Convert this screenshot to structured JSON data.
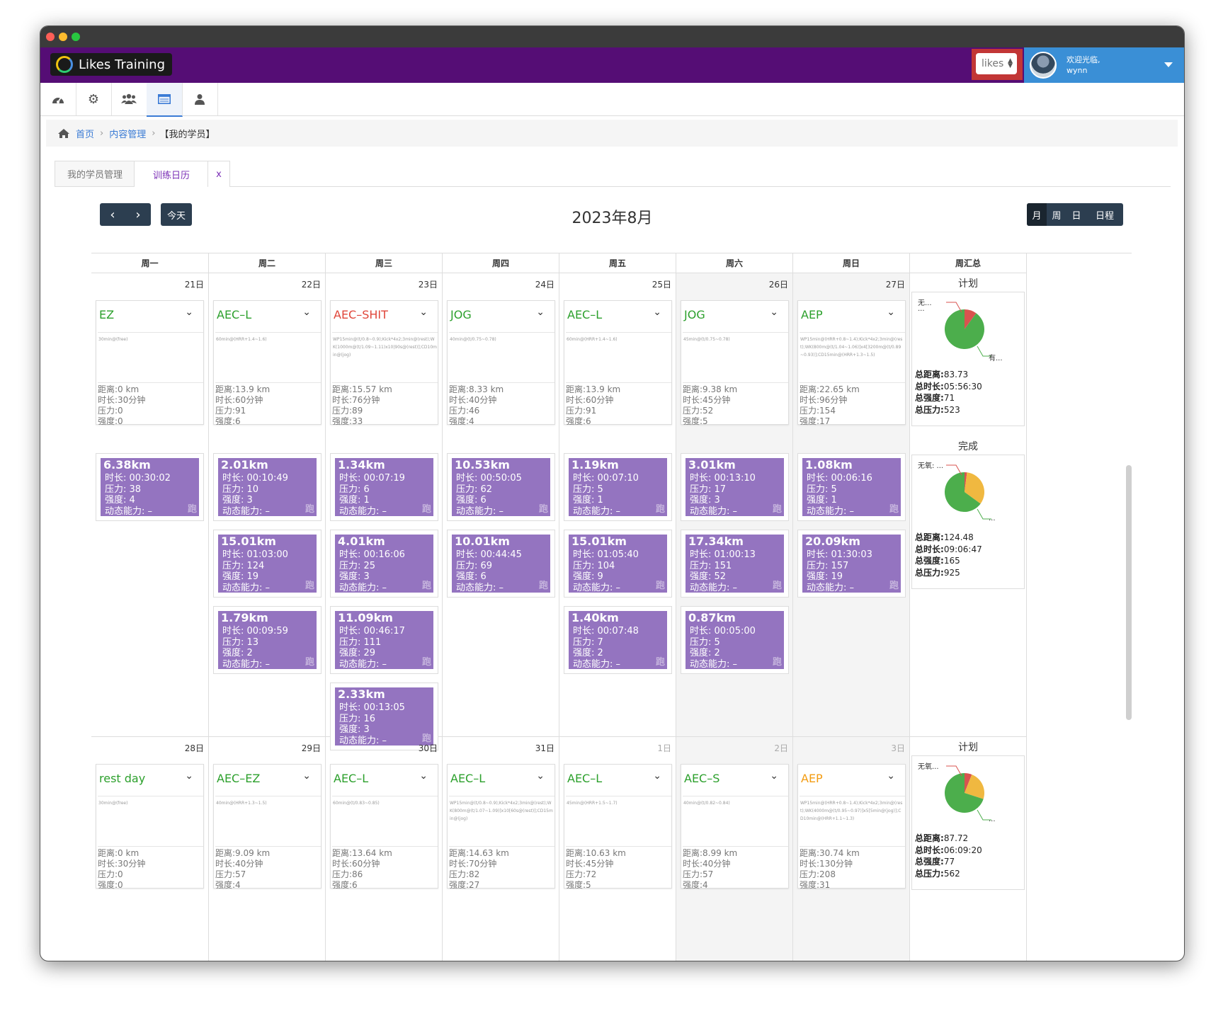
{
  "app": {
    "brand": "Likes Training",
    "org": "likes",
    "welcome": "欢迎光临,",
    "user": "wynn"
  },
  "iconbar": [
    "dashboard-icon",
    "gear-icon",
    "group-icon",
    "calendar-list-icon",
    "user-icon"
  ],
  "breadcrumb": {
    "home": "首页",
    "section": "内容管理",
    "current": "【我的学员】"
  },
  "tabs": {
    "tab1": "我的学员管理",
    "tab2": "训练日历",
    "close": "x"
  },
  "calendar": {
    "title": "2023年8月",
    "today": "今天",
    "views": [
      "月",
      "周",
      "日",
      "日程"
    ],
    "headers": [
      "周一",
      "周二",
      "周三",
      "周四",
      "周五",
      "周六",
      "周日",
      "周汇总"
    ],
    "weeks": [
      {
        "days": [
          {
            "date": "21日",
            "weekend": false,
            "dim": false,
            "plan": {
              "title": "EZ",
              "color": "#2ca02c",
              "desc": "30min@(free)",
              "stats": [
                "距离:0 km",
                "时长:30分钟",
                "压力:0",
                "强度:0"
              ]
            },
            "acts": [
              {
                "dist": "6.38km",
                "lines": [
                  "时长:  00:30:02",
                  "压力:  38",
                  "强度:  4",
                  "动态能力:  –"
                ],
                "tag": "跑"
              }
            ]
          },
          {
            "date": "22日",
            "weekend": false,
            "dim": false,
            "plan": {
              "title": "AEC–L",
              "color": "#2ca02c",
              "desc": "60min@(HRR+1.4~1.6)",
              "stats": [
                "距离:13.9 km",
                "时长:60分钟",
                "压力:91",
                "强度:6"
              ]
            },
            "acts": [
              {
                "dist": "2.01km",
                "lines": [
                  "时长:  00:10:49",
                  "压力:  10",
                  "强度:  3",
                  "动态能力:  –"
                ],
                "tag": "跑"
              },
              {
                "dist": "15.01km",
                "lines": [
                  "时长:  01:03:00",
                  "压力:  124",
                  "强度:  19",
                  "动态能力:  –"
                ],
                "tag": "跑"
              },
              {
                "dist": "1.79km",
                "lines": [
                  "时长:  00:09:59",
                  "压力:  13",
                  "强度:  2",
                  "动态能力:  –"
                ],
                "tag": "跑"
              }
            ]
          },
          {
            "date": "23日",
            "weekend": false,
            "dim": false,
            "plan": {
              "title": "AEC–SHIT",
              "color": "#e0463a",
              "desc": "WP15min@(t/0.8~0.9);Kick*4x2;3min@(rest);WK(1000m@(t/1.09~1.11)x10|90s@(rest)];CD10min@(jog)",
              "stats": [
                "距离:15.57 km",
                "时长:76分钟",
                "压力:89",
                "强度:33"
              ]
            },
            "acts": [
              {
                "dist": "1.34km",
                "lines": [
                  "时长:  00:07:19",
                  "压力:  6",
                  "强度:  1",
                  "动态能力:  –"
                ],
                "tag": "跑"
              },
              {
                "dist": "4.01km",
                "lines": [
                  "时长:  00:16:06",
                  "压力:  25",
                  "强度:  3",
                  "动态能力:  –"
                ],
                "tag": "跑"
              },
              {
                "dist": "11.09km",
                "lines": [
                  "时长:  00:46:17",
                  "压力:  111",
                  "强度:  29",
                  "动态能力:  –"
                ],
                "tag": "跑"
              },
              {
                "dist": "2.33km",
                "lines": [
                  "时长:  00:13:05",
                  "压力:  16",
                  "强度:  3",
                  "动态能力:  –"
                ],
                "tag": "跑"
              }
            ]
          },
          {
            "date": "24日",
            "weekend": false,
            "dim": false,
            "plan": {
              "title": "JOG",
              "color": "#2ca02c",
              "desc": "40min@(t/0.75~0.78)",
              "stats": [
                "距离:8.33 km",
                "时长:40分钟",
                "压力:46",
                "强度:4"
              ]
            },
            "acts": [
              {
                "dist": "10.53km",
                "lines": [
                  "时长:  00:50:05",
                  "压力:  62",
                  "强度:  6",
                  "动态能力:  –"
                ],
                "tag": "跑"
              },
              {
                "dist": "10.01km",
                "lines": [
                  "时长:  00:44:45",
                  "压力:  69",
                  "强度:  6",
                  "动态能力:  –"
                ],
                "tag": "跑"
              }
            ]
          },
          {
            "date": "25日",
            "weekend": false,
            "dim": false,
            "plan": {
              "title": "AEC–L",
              "color": "#2ca02c",
              "desc": "60min@(HRR+1.4~1.6)",
              "stats": [
                "距离:13.9 km",
                "时长:60分钟",
                "压力:91",
                "强度:6"
              ]
            },
            "acts": [
              {
                "dist": "1.19km",
                "lines": [
                  "时长:  00:07:10",
                  "压力:  5",
                  "强度:  1",
                  "动态能力:  –"
                ],
                "tag": "跑"
              },
              {
                "dist": "15.01km",
                "lines": [
                  "时长:  01:05:40",
                  "压力:  104",
                  "强度:  9",
                  "动态能力:  –"
                ],
                "tag": "跑"
              },
              {
                "dist": "1.40km",
                "lines": [
                  "时长:  00:07:48",
                  "压力:  7",
                  "强度:  2",
                  "动态能力:  –"
                ],
                "tag": "跑"
              }
            ]
          },
          {
            "date": "26日",
            "weekend": true,
            "dim": false,
            "plan": {
              "title": "JOG",
              "color": "#2ca02c",
              "desc": "45min@(t/0.75~0.78)",
              "stats": [
                "距离:9.38 km",
                "时长:45分钟",
                "压力:52",
                "强度:5"
              ]
            },
            "acts": [
              {
                "dist": "3.01km",
                "lines": [
                  "时长:  00:13:10",
                  "压力:  17",
                  "强度:  3",
                  "动态能力:  –"
                ],
                "tag": "跑"
              },
              {
                "dist": "17.34km",
                "lines": [
                  "时长:  01:00:13",
                  "压力:  151",
                  "强度:  52",
                  "动态能力:  –"
                ],
                "tag": "跑"
              },
              {
                "dist": "0.87km",
                "lines": [
                  "时长:  00:05:00",
                  "压力:  5",
                  "强度:  2",
                  "动态能力:  –"
                ],
                "tag": "跑"
              }
            ]
          },
          {
            "date": "27日",
            "weekend": true,
            "dim": false,
            "plan": {
              "title": "AEP",
              "color": "#2ca02c",
              "desc": "WP15min@(HRR+0.8~1.4);Kick*4x2;3min@(rest);WK(800m@(t/1.04~1.06)]x4[3200m@(t/0.89~0.93)];CD15min@(HRR+1.3~1.5)",
              "stats": [
                "距离:22.65 km",
                "时长:96分钟",
                "压力:154",
                "强度:17"
              ]
            },
            "acts": [
              {
                "dist": "1.08km",
                "lines": [
                  "时长:  00:06:16",
                  "压力:  5",
                  "强度:  1",
                  "动态能力:  –"
                ],
                "tag": "跑"
              },
              {
                "dist": "20.09km",
                "lines": [
                  "时长:  01:30:03",
                  "压力:  157",
                  "强度:  19",
                  "动态能力:  –"
                ],
                "tag": "跑"
              }
            ]
          }
        ],
        "summary": {
          "plan": {
            "title": "计划",
            "lbl1": "无...",
            "lbl1b": "...",
            "lbl2": "有...",
            "stats": [
              [
                "总距离:",
                "83.73"
              ],
              [
                "总时长:",
                "05:56:30"
              ],
              [
                "总强度:",
                "71"
              ],
              [
                "总压力:",
                "523"
              ]
            ],
            "pie": [
              0.1,
              0.0,
              0.9
            ]
          },
          "done": {
            "title": "完成",
            "lbl1": "无氧: ...",
            "lbl2": "...",
            "stats": [
              [
                "总距离:",
                "124.48"
              ],
              [
                "总时长:",
                "09:06:47"
              ],
              [
                "总强度:",
                "165"
              ],
              [
                "总压力:",
                "925"
              ]
            ],
            "pie": [
              0.02,
              0.33,
              0.65
            ]
          }
        }
      },
      {
        "days": [
          {
            "date": "28日",
            "weekend": false,
            "dim": false,
            "plan": {
              "title": "rest day",
              "color": "#2ca02c",
              "desc": "30min@(free)",
              "stats": [
                "距离:0 km",
                "时长:30分钟",
                "压力:0",
                "强度:0"
              ]
            },
            "acts": []
          },
          {
            "date": "29日",
            "weekend": false,
            "dim": false,
            "plan": {
              "title": "AEC–EZ",
              "color": "#2ca02c",
              "desc": "40min@(HRR+1.3~1.5)",
              "stats": [
                "距离:9.09 km",
                "时长:40分钟",
                "压力:57",
                "强度:4"
              ]
            },
            "acts": []
          },
          {
            "date": "30日",
            "weekend": false,
            "dim": false,
            "plan": {
              "title": "AEC–L",
              "color": "#2ca02c",
              "desc": "60min@(t/0.83~0.85)",
              "stats": [
                "距离:13.64 km",
                "时长:60分钟",
                "压力:86",
                "强度:6"
              ]
            },
            "acts": []
          },
          {
            "date": "31日",
            "weekend": false,
            "dim": false,
            "plan": {
              "title": "AEC–L",
              "color": "#2ca02c",
              "desc": "WP15min@(t/0.8~0.9);Kick*4x2;3min@(rest);WK(800m@(t/1.07~1.09)]x10[60s@(rest)];CD15min@(jog)",
              "stats": [
                "距离:14.63 km",
                "时长:70分钟",
                "压力:82",
                "强度:27"
              ]
            },
            "acts": []
          },
          {
            "date": "1日",
            "weekend": false,
            "dim": true,
            "plan": {
              "title": "AEC–L",
              "color": "#2ca02c",
              "desc": "45min@(HRR+1.5~1.7)",
              "stats": [
                "距离:10.63 km",
                "时长:45分钟",
                "压力:72",
                "强度:5"
              ]
            },
            "acts": []
          },
          {
            "date": "2日",
            "weekend": true,
            "dim": true,
            "plan": {
              "title": "AEC–S",
              "color": "#2ca02c",
              "desc": "40min@(t/0.82~0.84)",
              "stats": [
                "距离:8.99 km",
                "时长:40分钟",
                "压力:57",
                "强度:4"
              ]
            },
            "acts": []
          },
          {
            "date": "3日",
            "weekend": true,
            "dim": true,
            "plan": {
              "title": "AEP",
              "color": "#f39c12",
              "desc": "WP15min@(HRR+0.8~1.4);Kick*4x2;3min@(rest);WK(4000m@(t/0.95~0.97)]x5[5min@(jog)];CD10min@(HRR+1.1~1.3)",
              "stats": [
                "距离:30.74 km",
                "时长:130分钟",
                "压力:208",
                "强度:31"
              ]
            },
            "acts": []
          }
        ],
        "summary": {
          "plan": {
            "title": "计划",
            "lbl1": "无氧...",
            "lbl2": "...",
            "stats": [
              [
                "总距离:",
                "87.72"
              ],
              [
                "总时长:",
                "06:09:20"
              ],
              [
                "总强度:",
                "77"
              ],
              [
                "总压力:",
                "562"
              ]
            ],
            "pie": [
              0.06,
              0.24,
              0.7
            ]
          }
        }
      }
    ]
  },
  "colors": {
    "pie_red": "#d9534f",
    "pie_yellow": "#f0b840",
    "pie_green": "#4cae4c",
    "activity": "#9474c0",
    "topbar": "#550d75"
  }
}
